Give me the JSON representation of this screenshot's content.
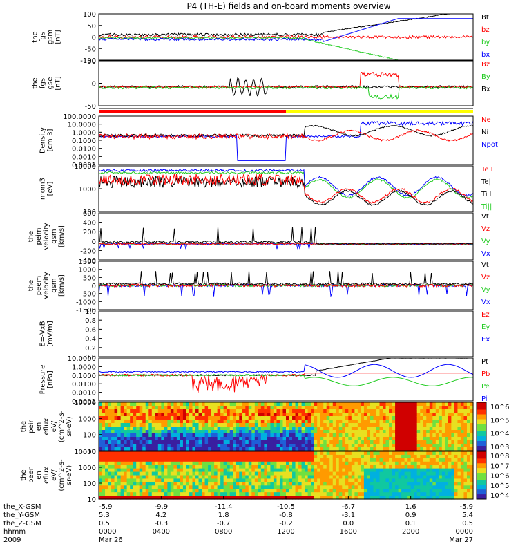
{
  "chart_data": {
    "type": "line",
    "title": "P4 (TH-E) fields and on-board moments overview",
    "colors": {
      "black": "#000000",
      "red": "#ff0000",
      "green": "#22cc22",
      "blue": "#0000ff",
      "yellow": "#ffff00"
    },
    "panels": [
      {
        "ylabel": [
          "the",
          "fgs",
          "gsm",
          "[nT]"
        ],
        "ticks": [
          "100",
          "50",
          "0",
          "-50",
          "-100"
        ],
        "legend": [
          {
            "name": "Bt",
            "color": "black"
          },
          {
            "name": "bz",
            "color": "red"
          },
          {
            "name": "by",
            "color": "green"
          },
          {
            "name": "bx",
            "color": "blue"
          }
        ]
      },
      {
        "ylabel": [
          "the",
          "fgs",
          "gse",
          "[nT]"
        ],
        "ticks": [
          "50",
          "0",
          "-50"
        ],
        "legend": [
          {
            "name": "Bz",
            "color": "red"
          },
          {
            "name": "By",
            "color": "green"
          },
          {
            "name": "Bx",
            "color": "black"
          }
        ]
      },
      {
        "ylabel": [
          "Density",
          "[cm-3]"
        ],
        "ticks": [
          "100.0000",
          "10.0000",
          "1.0000",
          "0.1000",
          "0.0100",
          "0.0010",
          "0.0001"
        ],
        "legend": [
          {
            "name": "Ne",
            "color": "red"
          },
          {
            "name": "Ni",
            "color": "black"
          },
          {
            "name": "Npot",
            "color": "blue"
          }
        ]
      },
      {
        "ylabel": [
          "mom3",
          "[eV]"
        ],
        "ticks": [
          "10000",
          "1000",
          "100"
        ],
        "legend": [
          {
            "name": "Te⊥",
            "color": "red"
          },
          {
            "name": "Te||",
            "color": "black"
          },
          {
            "name": "Ti⊥",
            "color": "black"
          },
          {
            "name": "Ti||",
            "color": "green"
          }
        ]
      },
      {
        "ylabel": [
          "the",
          "peim",
          "velocity",
          "gsm",
          "[km/s]"
        ],
        "ticks": [
          "600",
          "400",
          "200",
          "0",
          "-200",
          "-400"
        ],
        "legend": [
          {
            "name": "Vt",
            "color": "black"
          },
          {
            "name": "Vz",
            "color": "red"
          },
          {
            "name": "Vy",
            "color": "green"
          },
          {
            "name": "Vx",
            "color": "blue"
          }
        ]
      },
      {
        "ylabel": [
          "the",
          "peem",
          "velocity",
          "gsm",
          "[km/s]"
        ],
        "ticks": [
          "1500",
          "1000",
          "500",
          "0",
          "-500",
          "-1000",
          "-1500"
        ],
        "legend": [
          {
            "name": "Vt",
            "color": "black"
          },
          {
            "name": "Vz",
            "color": "red"
          },
          {
            "name": "Vy",
            "color": "green"
          },
          {
            "name": "Vx",
            "color": "blue"
          }
        ]
      },
      {
        "ylabel": [
          "E=-VxB",
          "[mV/m]"
        ],
        "ticks": [
          "1.0",
          "0.8",
          "0.6",
          "0.4",
          "0.2",
          "0.0"
        ],
        "legend": [
          {
            "name": "Ez",
            "color": "red"
          },
          {
            "name": "Ey",
            "color": "green"
          },
          {
            "name": "Ex",
            "color": "blue"
          }
        ]
      },
      {
        "ylabel": [
          "Pressure",
          "[nPa]"
        ],
        "ticks": [
          "10.0000",
          "1.0000",
          "0.1000",
          "0.0100",
          "0.0010",
          "0.0001"
        ],
        "legend": [
          {
            "name": "Pt",
            "color": "black"
          },
          {
            "name": "Pb",
            "color": "red"
          },
          {
            "name": "Pe",
            "color": "green"
          },
          {
            "name": "Pi",
            "color": "blue"
          }
        ]
      },
      {
        "ylabel": [
          "the",
          "peir",
          "en",
          "eflux",
          "eV/",
          "(cm^2-s-",
          "sr-eV)"
        ],
        "ticks": [
          "10000",
          "1000",
          "100",
          "10"
        ],
        "colorbar": [
          "10^6",
          "10^5",
          "10^4",
          "10^3"
        ]
      },
      {
        "ylabel": [
          "the",
          "peer",
          "en",
          "eflux",
          "eV/",
          "(cm^2-s-",
          "sr-eV)"
        ],
        "ticks": [
          "10000",
          "1000",
          "100",
          "10"
        ],
        "colorbar": [
          "10^8",
          "10^7",
          "10^6",
          "10^5",
          "10^4"
        ]
      }
    ],
    "xaxis": {
      "row_labels": [
        "the_X-GSM",
        "the_Y-GSM",
        "the_Z-GSM",
        "hhmm",
        "2009"
      ],
      "columns": [
        [
          "-5.9",
          "5.3",
          "0.5",
          "0000",
          "Mar 26"
        ],
        [
          "-9.9",
          "4.2",
          "-0.3",
          "0400",
          ""
        ],
        [
          "-11.4",
          "1.8",
          "-0.7",
          "0800",
          ""
        ],
        [
          "-10.5",
          "-0.8",
          "-0.2",
          "1200",
          ""
        ],
        [
          "-6.7",
          "-3.1",
          "0.0",
          "1600",
          ""
        ],
        [
          "1.6",
          "0.9",
          "0.1",
          "2000",
          ""
        ],
        [
          "-5.9",
          "5.4",
          "0.5",
          "0000",
          "Mar 27"
        ]
      ]
    }
  }
}
